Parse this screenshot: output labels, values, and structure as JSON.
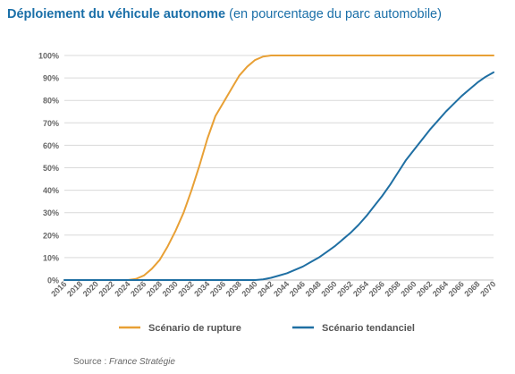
{
  "title": {
    "main": "Déploiement du véhicule autonome",
    "sub": "(en pourcentage du parc automobile)"
  },
  "source": {
    "label": "Source : ",
    "value": "France Stratégie"
  },
  "colors": {
    "title": "#1a6fa8",
    "rupture": "#e8a035",
    "tendanciel": "#1f6fa3",
    "grid": "#d9d9d9",
    "axis_text": "#666666"
  },
  "chart_data": {
    "type": "line",
    "ylim": [
      0,
      100
    ],
    "xlim": [
      2016,
      2070
    ],
    "grid": true,
    "legend_position": "bottom",
    "y_ticks": [
      "0%",
      "10%",
      "20%",
      "30%",
      "40%",
      "50%",
      "60%",
      "70%",
      "80%",
      "90%",
      "100%"
    ],
    "x_ticks": [
      "2016",
      "2018",
      "2020",
      "2022",
      "2024",
      "2026",
      "2028",
      "2030",
      "2032",
      "2034",
      "2036",
      "2038",
      "2040",
      "2042",
      "2044",
      "2046",
      "2048",
      "2050",
      "2052",
      "2054",
      "2056",
      "2058",
      "2060",
      "2062",
      "2064",
      "2066",
      "2068",
      "2070"
    ],
    "series": [
      {
        "name": "Scénario de rupture",
        "color": "#e8a035",
        "points": [
          [
            2016,
            0
          ],
          [
            2024,
            0
          ],
          [
            2025,
            0.5
          ],
          [
            2026,
            2
          ],
          [
            2027,
            5
          ],
          [
            2028,
            9
          ],
          [
            2029,
            15
          ],
          [
            2030,
            22
          ],
          [
            2031,
            30
          ],
          [
            2032,
            40
          ],
          [
            2033,
            51
          ],
          [
            2034,
            63
          ],
          [
            2035,
            73
          ],
          [
            2036,
            79
          ],
          [
            2037,
            85
          ],
          [
            2038,
            91
          ],
          [
            2039,
            95
          ],
          [
            2040,
            98
          ],
          [
            2041,
            99.5
          ],
          [
            2042,
            100
          ],
          [
            2070,
            100
          ]
        ]
      },
      {
        "name": "Scénario tendanciel",
        "color": "#1f6fa3",
        "points": [
          [
            2016,
            0
          ],
          [
            2038,
            0
          ],
          [
            2040,
            0
          ],
          [
            2041,
            0.3
          ],
          [
            2042,
            1
          ],
          [
            2043,
            2
          ],
          [
            2044,
            3
          ],
          [
            2045,
            4.5
          ],
          [
            2046,
            6
          ],
          [
            2047,
            8
          ],
          [
            2048,
            10
          ],
          [
            2049,
            12.5
          ],
          [
            2050,
            15
          ],
          [
            2051,
            18
          ],
          [
            2052,
            21
          ],
          [
            2053,
            24.5
          ],
          [
            2054,
            28.5
          ],
          [
            2055,
            33
          ],
          [
            2056,
            37.5
          ],
          [
            2057,
            42.5
          ],
          [
            2058,
            48
          ],
          [
            2059,
            53.5
          ],
          [
            2060,
            58
          ],
          [
            2061,
            62.5
          ],
          [
            2062,
            67
          ],
          [
            2063,
            71
          ],
          [
            2064,
            75
          ],
          [
            2065,
            78.5
          ],
          [
            2066,
            82
          ],
          [
            2067,
            85
          ],
          [
            2068,
            88
          ],
          [
            2069,
            90.5
          ],
          [
            2070,
            92.5
          ]
        ]
      }
    ]
  }
}
